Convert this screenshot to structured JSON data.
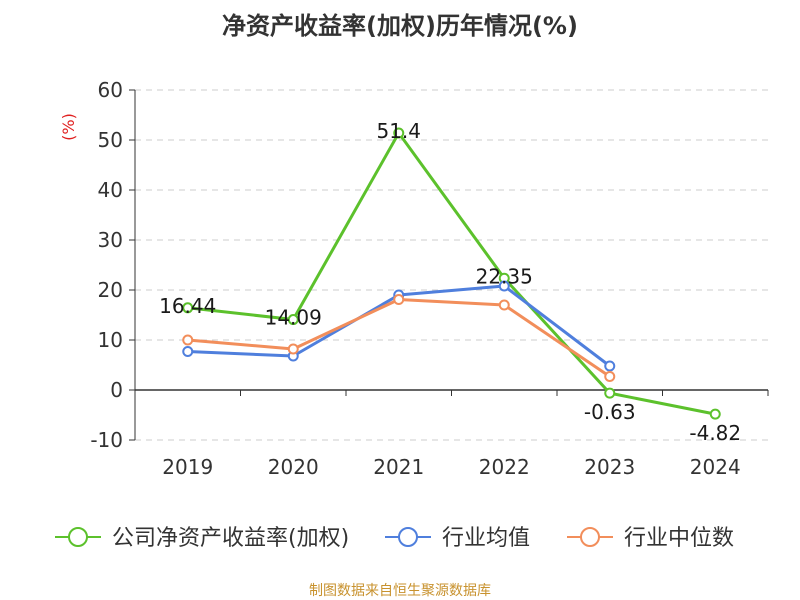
{
  "title": "净资产收益率(加权)历年情况(%)",
  "source": "制图数据来自恒生聚源数据库",
  "chart_data": {
    "type": "line",
    "title": "净资产收益率(加权)历年情况(%)",
    "ylabel": "(%)",
    "xlabel": "",
    "categories": [
      "2019",
      "2020",
      "2021",
      "2022",
      "2023",
      "2024"
    ],
    "ylim": [
      -10,
      60
    ],
    "yticks": [
      -10,
      0,
      10,
      20,
      30,
      40,
      50,
      60
    ],
    "grid": true,
    "legend_position": "bottom",
    "series": [
      {
        "name": "公司净资产收益率(加权)",
        "color": "#5cc12c",
        "values": [
          16.44,
          14.09,
          51.4,
          22.35,
          -0.63,
          -4.82
        ],
        "labels": [
          "16.44",
          "14.09",
          "51.4",
          "22.35",
          "-0.63",
          "-4.82"
        ]
      },
      {
        "name": "行业均值",
        "color": "#4f7fdd",
        "values": [
          7.7,
          6.8,
          19.0,
          20.8,
          4.8,
          null
        ]
      },
      {
        "name": "行业中位数",
        "color": "#f28e5b",
        "values": [
          10.0,
          8.2,
          18.1,
          17.0,
          2.7,
          null
        ]
      }
    ]
  }
}
